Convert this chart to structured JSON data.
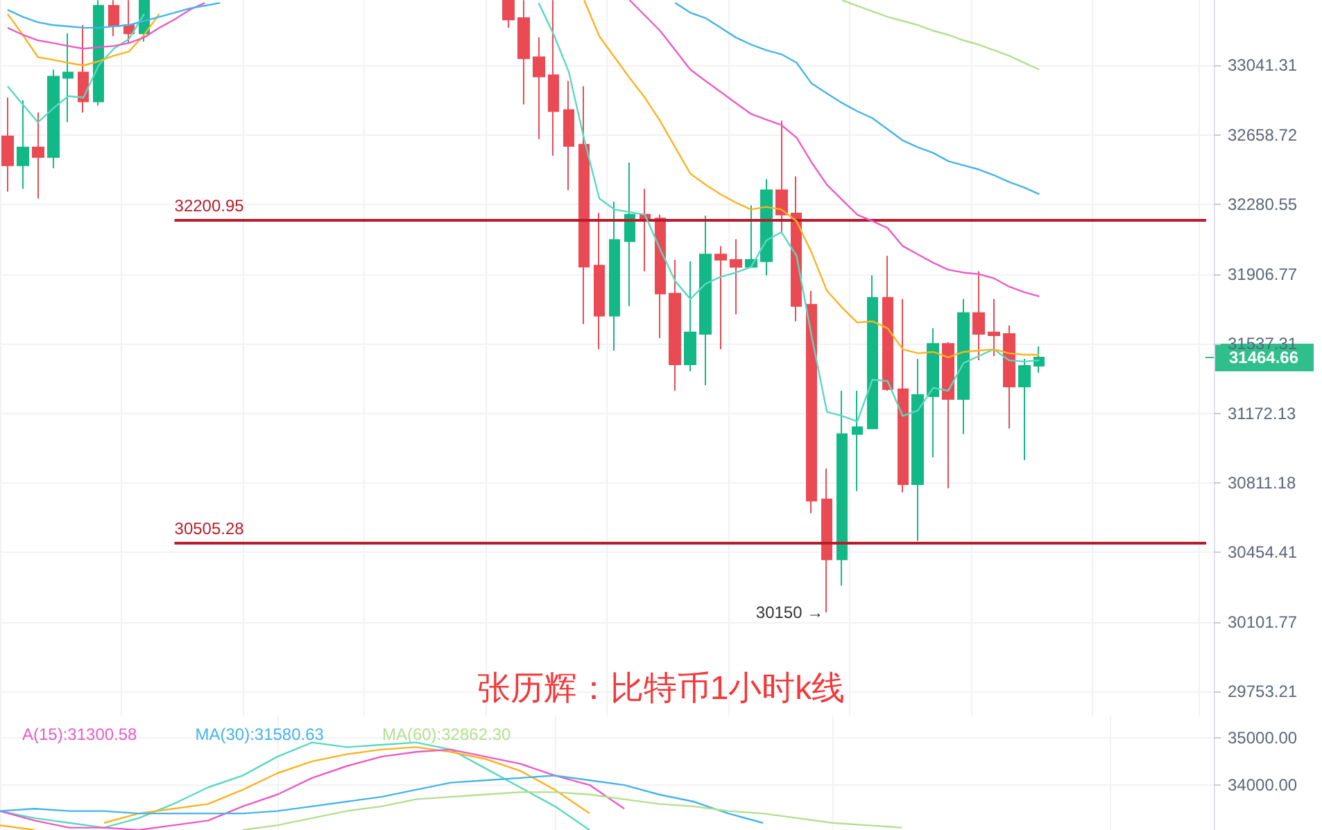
{
  "chart_data": [
    {
      "type": "candlestick",
      "title": "张历辉：比特币1小时k线",
      "log": true,
      "grid": true,
      "tick_labels": "y",
      "marker": "none",
      "categories": [
        null,
        null,
        null,
        null,
        null,
        null,
        null,
        null,
        null,
        null,
        null,
        null,
        null,
        null,
        null,
        null,
        null,
        null,
        null,
        null,
        null,
        null,
        null,
        null,
        null,
        null,
        null,
        null,
        null,
        null,
        null,
        null,
        null,
        null,
        null,
        null,
        null,
        null,
        null,
        null,
        null,
        null,
        null,
        null,
        null,
        null,
        null,
        null,
        null,
        null,
        null,
        null,
        null,
        null,
        null,
        null,
        null,
        null,
        null,
        null,
        null,
        null,
        null,
        null,
        null,
        null,
        null,
        null,
        null,
        null,
        null,
        null,
        null,
        null,
        null,
        null,
        null,
        null,
        null,
        null
      ],
      "ylim": [
        29630,
        33405
      ],
      "yticks": [
        33041.31,
        32658.72,
        32280.55,
        31906.77,
        31537.31,
        31172.13,
        30811.18,
        30454.41,
        30101.77,
        29753.21
      ],
      "ohlc": [
        [
          32651,
          32864,
          32351,
          32493
        ],
        [
          32493,
          32849,
          32366,
          32591
        ],
        [
          32591,
          32781,
          32313,
          32538
        ],
        [
          32538,
          33018,
          32478,
          32980
        ],
        [
          32972,
          33219,
          32728,
          33003
        ],
        [
          33003,
          33265,
          32781,
          32842
        ],
        [
          32842,
          33404,
          32819,
          33373
        ],
        [
          33373,
          33404,
          33203,
          33258
        ],
        [
          33265,
          33404,
          33165,
          33219
        ],
        [
          33219,
          33404,
          33173,
          33404
        ],
        null,
        null,
        null,
        null,
        null,
        null,
        null,
        null,
        null,
        null,
        null,
        null,
        null,
        null,
        null,
        null,
        null,
        null,
        null,
        null,
        null,
        null,
        null,
        [
          33404,
          33404,
          33250,
          33296
        ],
        [
          33304,
          33404,
          32826,
          33080
        ],
        [
          33087,
          33196,
          32636,
          32980
        ],
        [
          32987,
          33404,
          32546,
          32789
        ],
        [
          32796,
          32956,
          32358,
          32598
        ],
        [
          32606,
          32926,
          31641,
          31946
        ],
        [
          31953,
          32236,
          31508,
          31685
        ],
        [
          31685,
          32296,
          31501,
          32090
        ],
        [
          32083,
          32508,
          31737,
          32226
        ],
        [
          32226,
          32366,
          31922,
          32206
        ],
        [
          32206,
          32226,
          31567,
          31803
        ],
        [
          31803,
          31983,
          31290,
          31428
        ],
        [
          31428,
          31975,
          31392,
          31597
        ],
        [
          31589,
          32221,
          31319,
          32012
        ],
        [
          32012,
          32057,
          31508,
          31983
        ],
        [
          31983,
          32094,
          31693,
          31945
        ],
        [
          31945,
          32276,
          31945,
          31983
        ],
        [
          31975,
          32418,
          31900,
          32358
        ],
        [
          32358,
          32737,
          32124,
          32226
        ],
        [
          32233,
          32433,
          31656,
          31737
        ],
        [
          31744,
          31818,
          30655,
          30719
        ],
        [
          30726,
          30885,
          30150,
          30419
        ],
        [
          30419,
          31290,
          30285,
          31064
        ],
        [
          31064,
          31290,
          30769,
          31100
        ],
        [
          31093,
          31900,
          31093,
          31781
        ],
        [
          31781,
          32005,
          31290,
          31298
        ],
        [
          31298,
          31774,
          30762,
          30804
        ],
        [
          30804,
          31457,
          30513,
          31268
        ],
        [
          31261,
          31619,
          30943,
          31537
        ],
        [
          31537,
          31545,
          30783,
          31246
        ],
        [
          31246,
          31774,
          31064,
          31700
        ],
        [
          31700,
          31922,
          31450,
          31589
        ],
        [
          31597,
          31774,
          31472,
          31582
        ],
        [
          31589,
          31634,
          31093,
          31312
        ],
        [
          31312,
          31457,
          30928,
          31421
        ],
        [
          31421,
          31523,
          31384,
          31464.66
        ],
        null,
        null,
        null,
        null,
        null,
        null,
        null,
        null,
        null,
        null,
        null
      ],
      "colors": [
        "#ea4a54",
        "#12b886",
        "#ea4a54",
        "#12b886",
        "#12b886",
        "#ea4a54",
        "#12b886",
        "#ea4a54",
        "#ea4a54",
        "#12b886",
        null,
        null,
        null,
        null,
        null,
        null,
        null,
        null,
        null,
        null,
        null,
        null,
        null,
        null,
        null,
        null,
        null,
        null,
        null,
        null,
        null,
        null,
        null,
        "#ea4a54",
        "#ea4a54",
        "#ea4a54",
        "#ea4a54",
        "#ea4a54",
        "#ea4a54",
        "#ea4a54",
        "#12b886",
        "#12b886",
        "#ea4a54",
        "#ea4a54",
        "#ea4a54",
        "#12b886",
        "#12b886",
        "#ea4a54",
        "#ea4a54",
        "#12b886",
        "#12b886",
        "#ea4a54",
        "#ea4a54",
        "#ea4a54",
        "#ea4a54",
        "#12b886",
        "#12b886",
        "#12b886",
        "#ea4a54",
        "#ea4a54",
        "#12b886",
        "#12b886",
        "#ea4a54",
        "#12b886",
        "#ea4a54",
        "#ea4a54",
        "#ea4a54",
        "#12b886",
        "#12b886",
        null,
        null,
        null,
        null,
        null,
        null,
        null,
        null,
        null,
        null,
        null
      ],
      "series": [
        {
          "type": "line",
          "color": "#5ad8c0",
          "values": [
            32926,
            32826,
            32728,
            32804,
            32872,
            32864,
            33041,
            33134,
            33188,
            33327,
            null,
            null,
            null,
            null,
            null,
            null,
            null,
            null,
            null,
            null,
            null,
            null,
            null,
            null,
            null,
            null,
            null,
            null,
            null,
            null,
            null,
            null,
            null,
            null,
            null,
            33389,
            33211,
            33003,
            32636,
            32313,
            32254,
            32240,
            32226,
            32042,
            31870,
            31774,
            31855,
            31892,
            31915,
            31945,
            32087,
            32132,
            32005,
            31575,
            31180,
            31158,
            31129,
            31348,
            31341,
            31158,
            31187,
            31305,
            31290,
            31435,
            31472,
            31508,
            31450,
            31443,
            31450,
            null,
            null,
            null,
            null,
            null,
            null,
            null,
            null,
            null,
            null,
            null
          ]
        },
        {
          "type": "line",
          "color": "#fbb321",
          "values": [
            33327,
            33211,
            33087,
            33072,
            33056,
            33041,
            33064,
            33095,
            33118,
            33211,
            33327,
            null,
            null,
            null,
            null,
            null,
            null,
            null,
            null,
            null,
            null,
            null,
            null,
            null,
            null,
            null,
            null,
            null,
            null,
            null,
            null,
            null,
            null,
            null,
            null,
            null,
            null,
            null,
            33404,
            33203,
            33087,
            32972,
            32864,
            32736,
            32591,
            32448,
            32388,
            32336,
            32291,
            32254,
            32268,
            32254,
            32191,
            32020,
            31818,
            31729,
            31649,
            31656,
            31619,
            31508,
            31487,
            31494,
            31465,
            31494,
            31501,
            31508,
            31487,
            31479,
            31479,
            null,
            null,
            null,
            null,
            null,
            null,
            null,
            null,
            null,
            null,
            null
          ]
        },
        {
          "type": "line",
          "color": "#ea5bc6",
          "values": [
            33250,
            33211,
            33180,
            33165,
            33149,
            33134,
            33142,
            33149,
            33165,
            33196,
            33250,
            33296,
            33350,
            33389,
            null,
            null,
            null,
            null,
            null,
            null,
            null,
            null,
            null,
            null,
            null,
            null,
            null,
            null,
            null,
            null,
            null,
            null,
            null,
            null,
            null,
            null,
            null,
            null,
            null,
            null,
            null,
            33404,
            33319,
            33234,
            33126,
            33018,
            32956,
            32895,
            32834,
            32774,
            32743,
            32713,
            32644,
            32508,
            32388,
            32306,
            32226,
            32191,
            32154,
            32057,
            32012,
            31968,
            31930,
            31915,
            31907,
            31885,
            31840,
            31811,
            31788,
            null,
            null,
            null,
            null,
            null,
            null,
            null,
            null,
            null,
            null,
            null
          ]
        },
        {
          "type": "line",
          "color": "#45b4e8",
          "values": [
            33350,
            33311,
            33281,
            33265,
            33258,
            33250,
            33250,
            33258,
            33265,
            33288,
            33311,
            33334,
            33358,
            33373,
            33389,
            null,
            null,
            null,
            null,
            null,
            null,
            null,
            null,
            null,
            null,
            null,
            null,
            null,
            null,
            null,
            null,
            null,
            null,
            null,
            null,
            null,
            null,
            null,
            null,
            null,
            null,
            null,
            null,
            null,
            33389,
            33334,
            33304,
            33250,
            33196,
            33157,
            33126,
            33103,
            33056,
            32941,
            32887,
            32834,
            32789,
            32751,
            32690,
            32629,
            32591,
            32561,
            32516,
            32493,
            32471,
            32440,
            32403,
            32373,
            32336,
            null,
            null,
            null,
            null,
            null,
            null,
            null,
            null,
            null,
            null,
            null
          ]
        },
        {
          "type": "line",
          "color": "#b3df8f",
          "values": [
            null,
            null,
            null,
            null,
            null,
            null,
            null,
            null,
            null,
            null,
            null,
            null,
            null,
            null,
            null,
            null,
            null,
            null,
            null,
            null,
            null,
            null,
            null,
            null,
            null,
            null,
            null,
            null,
            null,
            null,
            null,
            null,
            null,
            null,
            null,
            null,
            null,
            null,
            null,
            null,
            null,
            null,
            null,
            null,
            null,
            null,
            null,
            null,
            null,
            null,
            null,
            null,
            null,
            null,
            null,
            33404,
            33373,
            33342,
            33311,
            33288,
            33265,
            33234,
            33211,
            33180,
            33157,
            33126,
            33095,
            33056,
            33018,
            null,
            null,
            null,
            null,
            null,
            null,
            null,
            null,
            null,
            null,
            null
          ]
        }
      ],
      "ref_lines": [
        {
          "axis": "y",
          "value": 32200.95,
          "label": "32200.95",
          "color": "#b71c2c"
        },
        {
          "axis": "y",
          "value": 30505.28,
          "label": "30505.28",
          "color": "#b71c2c"
        }
      ],
      "annotations": [
        "30150 →",
        "31464.66"
      ]
    },
    {
      "type": "line",
      "grid": true,
      "tick_labels": "y",
      "marker": "none",
      "legend": "top left",
      "categories": [
        null,
        null,
        null,
        null,
        null,
        null,
        null,
        null,
        null,
        null,
        null,
        null,
        null,
        null,
        null,
        null,
        null,
        null,
        null,
        null,
        null,
        null,
        null,
        null,
        null,
        null,
        null,
        null,
        null,
        null,
        null,
        null,
        null,
        null,
        null,
        null
      ],
      "ylim": [
        33050,
        35450
      ],
      "yticks": [
        {
          "value": 35000,
          "label": "35000.00"
        },
        {
          "value": 34000,
          "label": "34000.00"
        }
      ],
      "series": [
        {
          "color": "#5ad8c0",
          "values": [
            33450,
            33300,
            33200,
            33100,
            33300,
            33600,
            33950,
            34200,
            34600,
            34900,
            34800,
            34850,
            34900,
            34750,
            34350,
            33950,
            33550,
            33050,
            null,
            null,
            null,
            null,
            null,
            null,
            null,
            null,
            null,
            null,
            null,
            null,
            null,
            null,
            null,
            null,
            null,
            null
          ]
        },
        {
          "color": "#fbb321",
          "values": [
            33150,
            33050,
            null,
            33200,
            33400,
            33500,
            33600,
            33900,
            34250,
            34500,
            34650,
            34750,
            34800,
            34700,
            34550,
            34300,
            33900,
            33400,
            null,
            null,
            null,
            null,
            null,
            null,
            null,
            null,
            null,
            null,
            null,
            null,
            null,
            null,
            null,
            null,
            null,
            null
          ]
        },
        {
          "name": "A(15):31300.58",
          "color": "#ea5bc6",
          "values": [
            33450,
            33250,
            33100,
            33100,
            33050,
            33150,
            33250,
            33550,
            33800,
            34150,
            34400,
            34600,
            34700,
            34750,
            34600,
            34450,
            34200,
            34000,
            33500,
            null,
            null,
            null,
            null,
            null,
            null,
            null,
            null,
            null,
            null,
            null,
            null,
            null,
            null,
            null,
            null,
            null
          ]
        },
        {
          "name": "MA(30):31580.63",
          "color": "#45b4e8",
          "values": [
            33450,
            33500,
            33450,
            33450,
            33400,
            33400,
            33400,
            33400,
            33450,
            33550,
            33650,
            33750,
            33900,
            34050,
            34100,
            34150,
            34200,
            34100,
            34000,
            33800,
            33650,
            33400,
            33200,
            null,
            null,
            null,
            null,
            null,
            null,
            null,
            null,
            null,
            null,
            null,
            null,
            null
          ]
        },
        {
          "name": "MA(60):32862.30",
          "color": "#b3df8f",
          "values": [
            null,
            null,
            null,
            null,
            null,
            null,
            null,
            33050,
            33150,
            33300,
            33450,
            33550,
            33700,
            33750,
            33800,
            33850,
            33850,
            33800,
            33700,
            33600,
            33550,
            33450,
            33400,
            33300,
            33200,
            33150,
            33100,
            null,
            null,
            null,
            null,
            null,
            null,
            null,
            null,
            null
          ]
        }
      ]
    }
  ]
}
